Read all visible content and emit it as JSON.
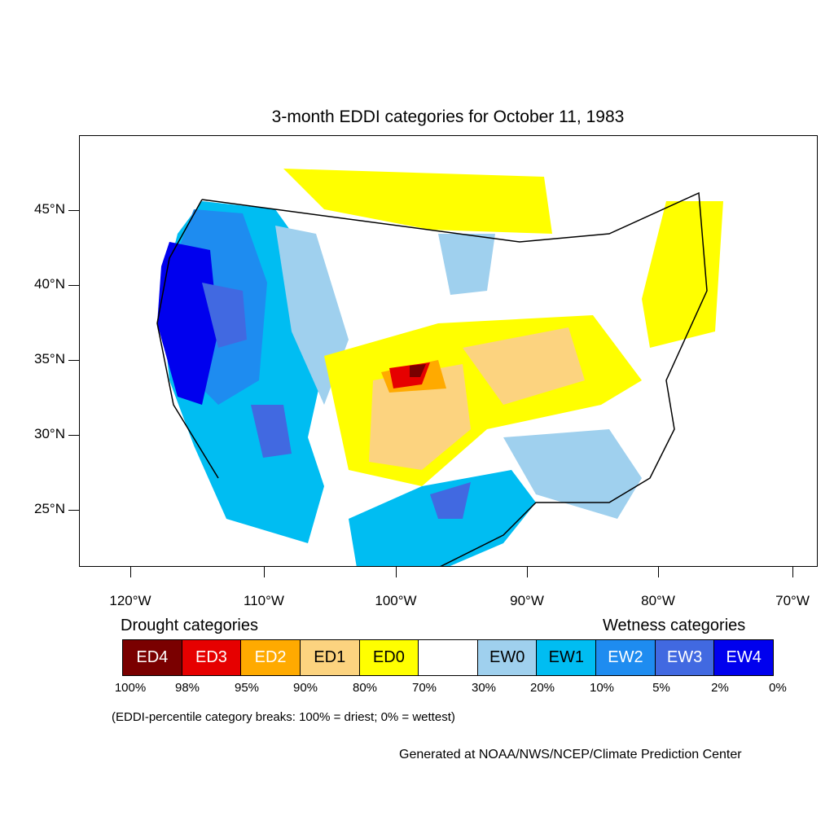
{
  "title": "3-month EDDI categories for October 11, 1983",
  "lat_labels": [
    "45°N",
    "40°N",
    "35°N",
    "30°N",
    "25°N"
  ],
  "lon_labels": [
    "120°W",
    "110°W",
    "100°W",
    "90°W",
    "80°W",
    "70°W"
  ],
  "legend": {
    "drought_heading": "Drought categories",
    "wetness_heading": "Wetness categories",
    "categories": [
      {
        "label": "ED4",
        "color": "#7a0000",
        "text_color": "#ffffff"
      },
      {
        "label": "ED3",
        "color": "#e60000",
        "text_color": "#ffffff"
      },
      {
        "label": "ED2",
        "color": "#ffaa00",
        "text_color": "#ffffff"
      },
      {
        "label": "ED1",
        "color": "#fcd37f",
        "text_color": "#000000"
      },
      {
        "label": "ED0",
        "color": "#ffff00",
        "text_color": "#000000"
      },
      {
        "label": "",
        "color": "#ffffff",
        "text_color": "#000000"
      },
      {
        "label": "EW0",
        "color": "#9fd0ee",
        "text_color": "#000000"
      },
      {
        "label": "EW1",
        "color": "#00bdf2",
        "text_color": "#000000"
      },
      {
        "label": "EW2",
        "color": "#1e8cf0",
        "text_color": "#ffffff"
      },
      {
        "label": "EW3",
        "color": "#4169e1",
        "text_color": "#ffffff"
      },
      {
        "label": "EW4",
        "color": "#0000ee",
        "text_color": "#ffffff"
      }
    ],
    "breaks": [
      "100%",
      "98%",
      "95%",
      "90%",
      "80%",
      "70%",
      "30%",
      "20%",
      "10%",
      "5%",
      "2%",
      "0%"
    ]
  },
  "note": "(EDDI-percentile category breaks: 100% = driest; 0% = wettest)",
  "credit": "Generated at NOAA/NWS/NCEP/Climate Prediction Center"
}
